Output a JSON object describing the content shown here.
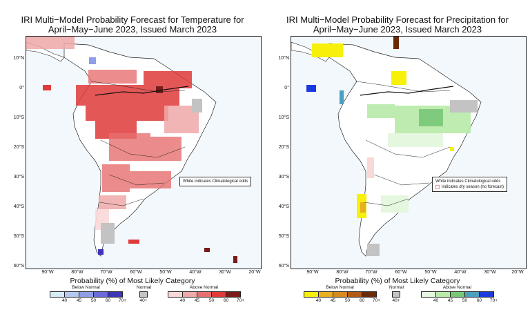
{
  "temperature": {
    "title_line1": "IRI Multi−Model Probability Forecast for Temperature for",
    "title_line2": "April−May−June 2023, Issued March 2023",
    "note": "White indicates Climatological odds",
    "legend_title": "Probability (%) of Most Likely Category",
    "below": {
      "title": "Below Normal",
      "ticks": [
        "40",
        "45",
        "50",
        "60",
        "70+"
      ],
      "colors": [
        "#d7ebf7",
        "#b5c9f0",
        "#8f9ee6",
        "#6a6ad9",
        "#3d33b8"
      ]
    },
    "normal": {
      "title": "Normal",
      "tick": "40+",
      "color": "#c3c3c3"
    },
    "above": {
      "title": "Above Normal",
      "ticks": [
        "40",
        "45",
        "50",
        "60",
        "70+"
      ],
      "colors": [
        "#f9d8d8",
        "#f0a8a8",
        "#e86f6f",
        "#e03a3a",
        "#7a1a1a"
      ]
    }
  },
  "precipitation": {
    "title_line1": "IRI Multi−Model Probability Forecast for Precipitation for",
    "title_line2": "April−May−June 2023, Issued March 2023",
    "note_line1": "White indicates Climatological odds",
    "note_line2": "indicates dry season (no forecast)",
    "legend_title": "Probability (%) of Most Likely Category",
    "below": {
      "title": "Below Normal",
      "ticks": [
        "40",
        "45",
        "50",
        "60",
        "70+"
      ],
      "colors": [
        "#f7f00a",
        "#e8b020",
        "#d98a1e",
        "#b35a14",
        "#6a2a08"
      ]
    },
    "normal": {
      "title": "Normal",
      "tick": "40+",
      "color": "#c3c3c3"
    },
    "above": {
      "title": "Above Normal",
      "ticks": [
        "40",
        "45",
        "50",
        "60",
        "70+"
      ],
      "colors": [
        "#e6f7e0",
        "#b8eaa8",
        "#78c878",
        "#4aa0c0",
        "#1a3ae0"
      ]
    }
  },
  "lat_labels": [
    "10°N",
    "0°",
    "10°S",
    "20°S",
    "30°S",
    "40°S",
    "50°S",
    "60°S"
  ],
  "lon_labels": [
    "90°W",
    "80°W",
    "70°W",
    "60°W",
    "50°W",
    "40°W",
    "30°W",
    "20°W"
  ]
}
